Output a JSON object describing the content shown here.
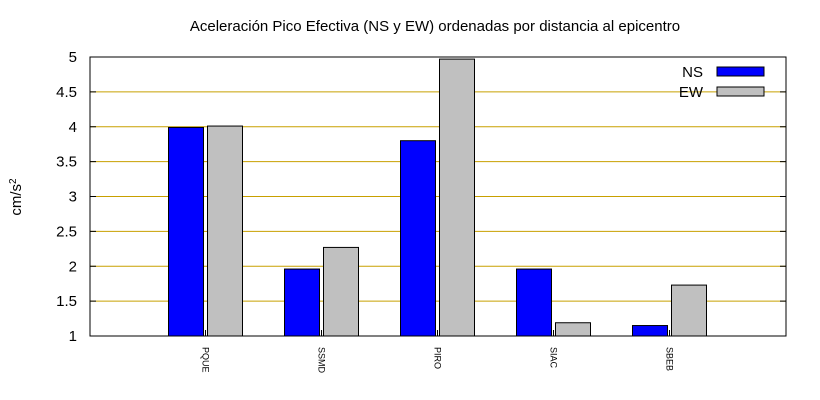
{
  "chart_data": {
    "type": "bar",
    "title": "Aceleración Pico Efectiva (NS y EW) ordenadas por distancia al epicentro",
    "xlabel": "",
    "ylabel": "cm/s",
    "ylabel_superscript": "2",
    "categories": [
      "PQUE",
      "SSMD",
      "PIRO",
      "SIAC",
      "SBEB"
    ],
    "series": [
      {
        "name": "NS",
        "color": "#0000ff",
        "values": [
          3.99,
          1.96,
          3.8,
          1.96,
          1.15
        ]
      },
      {
        "name": "EW",
        "color": "#c0c0c0",
        "values": [
          4.01,
          2.27,
          4.97,
          1.19,
          1.73
        ]
      }
    ],
    "ylim": [
      1,
      5
    ],
    "yticks": [
      "1",
      "1.5",
      "2",
      "2.5",
      "3",
      "3.5",
      "4",
      "4.5",
      "5"
    ],
    "grid": true,
    "grid_color": "#c8a000",
    "legend_position": "top-right"
  }
}
